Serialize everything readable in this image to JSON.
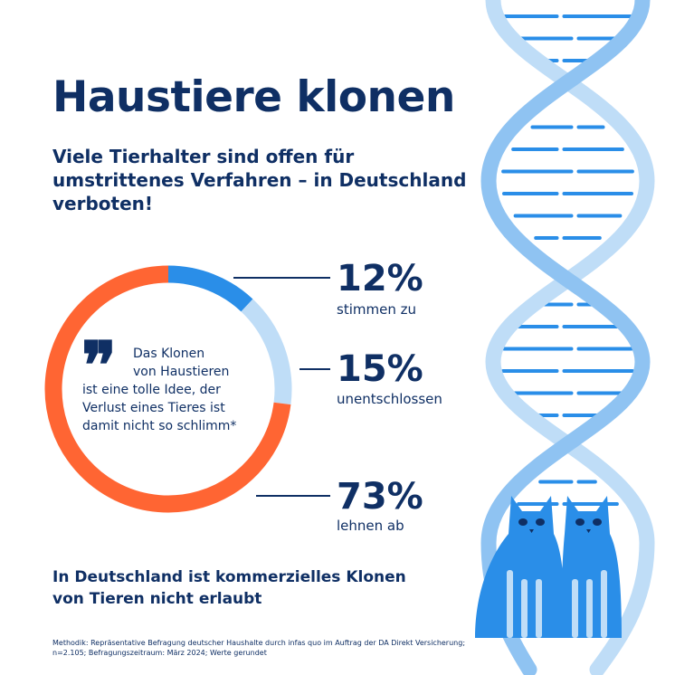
{
  "title": "Haustiere klonen",
  "subtitle": "Viele Tierhalter sind offen für umstrittenes Verfahren – in Deutschland verboten!",
  "quote": {
    "line1": "Das Klonen",
    "line2": "von Haustieren",
    "line3": "ist eine tolle Idee, der",
    "line4": "Verlust eines Tieres ist",
    "line5": "damit nicht so schlimm*"
  },
  "chart_data": {
    "type": "pie",
    "categories": [
      "stimmen zu",
      "unentschlossen",
      "lehnen ab"
    ],
    "values": [
      12,
      15,
      73
    ],
    "value_labels": [
      "12%",
      "15%",
      "73%"
    ],
    "colors": [
      "#2a8ee8",
      "#bfddf7",
      "#ff6533"
    ],
    "unit": "%"
  },
  "bottom_text": "In Deutschland ist kommerzielles Klonen von Tieren nicht erlaubt",
  "methodology": "Methodik: Repräsentative Befragung deutscher Haushalte durch infas quo im Auftrag der DA Direkt Versicherung; n=2.105; Befragungszeitraum: März 2024; Werte gerundet",
  "colors": {
    "navy": "#0f2f64",
    "cat_blue": "#2a8ee8",
    "helix_light": "#bfddf7",
    "helix_mid": "#8fc3f2"
  },
  "icons": [
    "quote-icon",
    "dna-helix-icon",
    "cat-icon"
  ]
}
